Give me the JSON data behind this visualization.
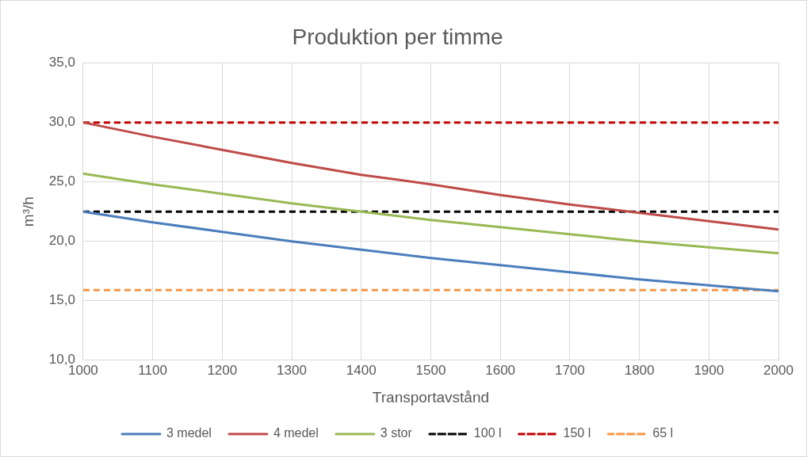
{
  "chart_data": {
    "type": "line",
    "title": "Produktion per timme",
    "xlabel": "Transportavstånd",
    "ylabel": "m³/h",
    "x": [
      1000,
      1100,
      1200,
      1300,
      1400,
      1500,
      1600,
      1700,
      1800,
      1900,
      2000
    ],
    "xlim": [
      1000,
      2000
    ],
    "xticks": [
      1000,
      1100,
      1200,
      1300,
      1400,
      1500,
      1600,
      1700,
      1800,
      1900,
      2000
    ],
    "ylim": [
      10,
      35
    ],
    "yticks": [
      {
        "value": 10,
        "label": "10,0"
      },
      {
        "value": 15,
        "label": "15,0"
      },
      {
        "value": 20,
        "label": "20,0"
      },
      {
        "value": 25,
        "label": "25,0"
      },
      {
        "value": 30,
        "label": "30,0"
      },
      {
        "value": 35,
        "label": "35,0"
      }
    ],
    "grid": true,
    "legend": "bottom",
    "marker": "none",
    "series": [
      {
        "name": "3 medel",
        "color": "#4a7ebb",
        "line_style": "solid",
        "values": [
          22.5,
          21.6,
          20.8,
          20.0,
          19.3,
          18.6,
          18.0,
          17.4,
          16.8,
          16.3,
          15.8
        ]
      },
      {
        "name": "4 medel",
        "color": "#be4b48",
        "line_style": "solid",
        "values": [
          30.0,
          28.8,
          27.7,
          26.6,
          25.6,
          24.8,
          23.9,
          23.1,
          22.4,
          21.7,
          21.0
        ]
      },
      {
        "name": "3 stor",
        "color": "#98b954",
        "line_style": "solid",
        "values": [
          25.7,
          24.8,
          24.0,
          23.2,
          22.5,
          21.8,
          21.2,
          20.6,
          20.0,
          19.5,
          19.0
        ]
      },
      {
        "name": "100 l",
        "color": "#000000",
        "line_style": "dashed",
        "values": [
          22.5,
          22.5,
          22.5,
          22.5,
          22.5,
          22.5,
          22.5,
          22.5,
          22.5,
          22.5,
          22.5
        ]
      },
      {
        "name": "150 l",
        "color": "#c00000",
        "line_style": "dashed",
        "values": [
          30.0,
          30.0,
          30.0,
          30.0,
          30.0,
          30.0,
          30.0,
          30.0,
          30.0,
          30.0,
          30.0
        ]
      },
      {
        "name": "65 l",
        "color": "#f79646",
        "line_style": "dashed",
        "values": [
          15.9,
          15.9,
          15.9,
          15.9,
          15.9,
          15.9,
          15.9,
          15.9,
          15.9,
          15.9,
          15.9
        ]
      }
    ]
  }
}
